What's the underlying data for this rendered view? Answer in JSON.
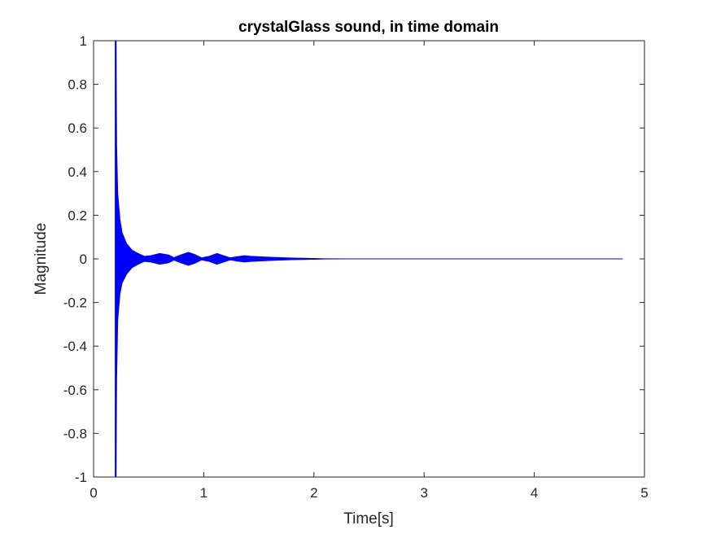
{
  "chart_data": {
    "type": "line",
    "title": "crystalGlass sound, in time domain",
    "xlabel": "Time[s]",
    "ylabel": "Magnitude",
    "xlim": [
      0,
      5
    ],
    "ylim": [
      -1,
      1
    ],
    "x_ticks": [
      "0",
      "1",
      "2",
      "3",
      "4",
      "5"
    ],
    "y_ticks": [
      "-1",
      "-0.8",
      "-0.6",
      "-0.4",
      "-0.2",
      "0",
      "0.2",
      "0.4",
      "0.6",
      "0.8",
      "1"
    ],
    "grid": false,
    "series": [
      {
        "color": "#0000ff",
        "signal_start": 0.2,
        "signal_end": 4.8,
        "envelope": {
          "t": [
            0.2,
            0.205,
            0.21,
            0.22,
            0.24,
            0.26,
            0.3,
            0.35,
            0.4,
            0.46,
            0.52,
            0.6,
            0.68,
            0.73,
            0.79,
            0.86,
            0.92,
            0.98,
            1.05,
            1.12,
            1.18,
            1.24,
            1.3,
            1.37,
            1.43,
            1.5,
            1.6,
            1.7,
            1.8,
            1.9,
            2.0,
            2.1,
            2.3,
            2.5,
            4.8
          ],
          "max": [
            1.0,
            1.0,
            0.52,
            0.3,
            0.18,
            0.12,
            0.07,
            0.04,
            0.026,
            0.012,
            0.015,
            0.025,
            0.018,
            0.006,
            0.018,
            0.03,
            0.02,
            0.005,
            0.012,
            0.025,
            0.015,
            0.005,
            0.01,
            0.015,
            0.012,
            0.01,
            0.008,
            0.006,
            0.004,
            0.003,
            0.002,
            0.001,
            0.0005,
            0.0003,
            0.0002
          ],
          "min": [
            -1.0,
            -1.0,
            -0.55,
            -0.28,
            -0.16,
            -0.11,
            -0.07,
            -0.04,
            -0.026,
            -0.012,
            -0.015,
            -0.025,
            -0.018,
            -0.006,
            -0.018,
            -0.03,
            -0.02,
            -0.005,
            -0.012,
            -0.025,
            -0.015,
            -0.005,
            -0.01,
            -0.015,
            -0.012,
            -0.01,
            -0.008,
            -0.006,
            -0.004,
            -0.003,
            -0.002,
            -0.001,
            -0.0005,
            -0.0003,
            -0.0002
          ]
        }
      }
    ]
  }
}
